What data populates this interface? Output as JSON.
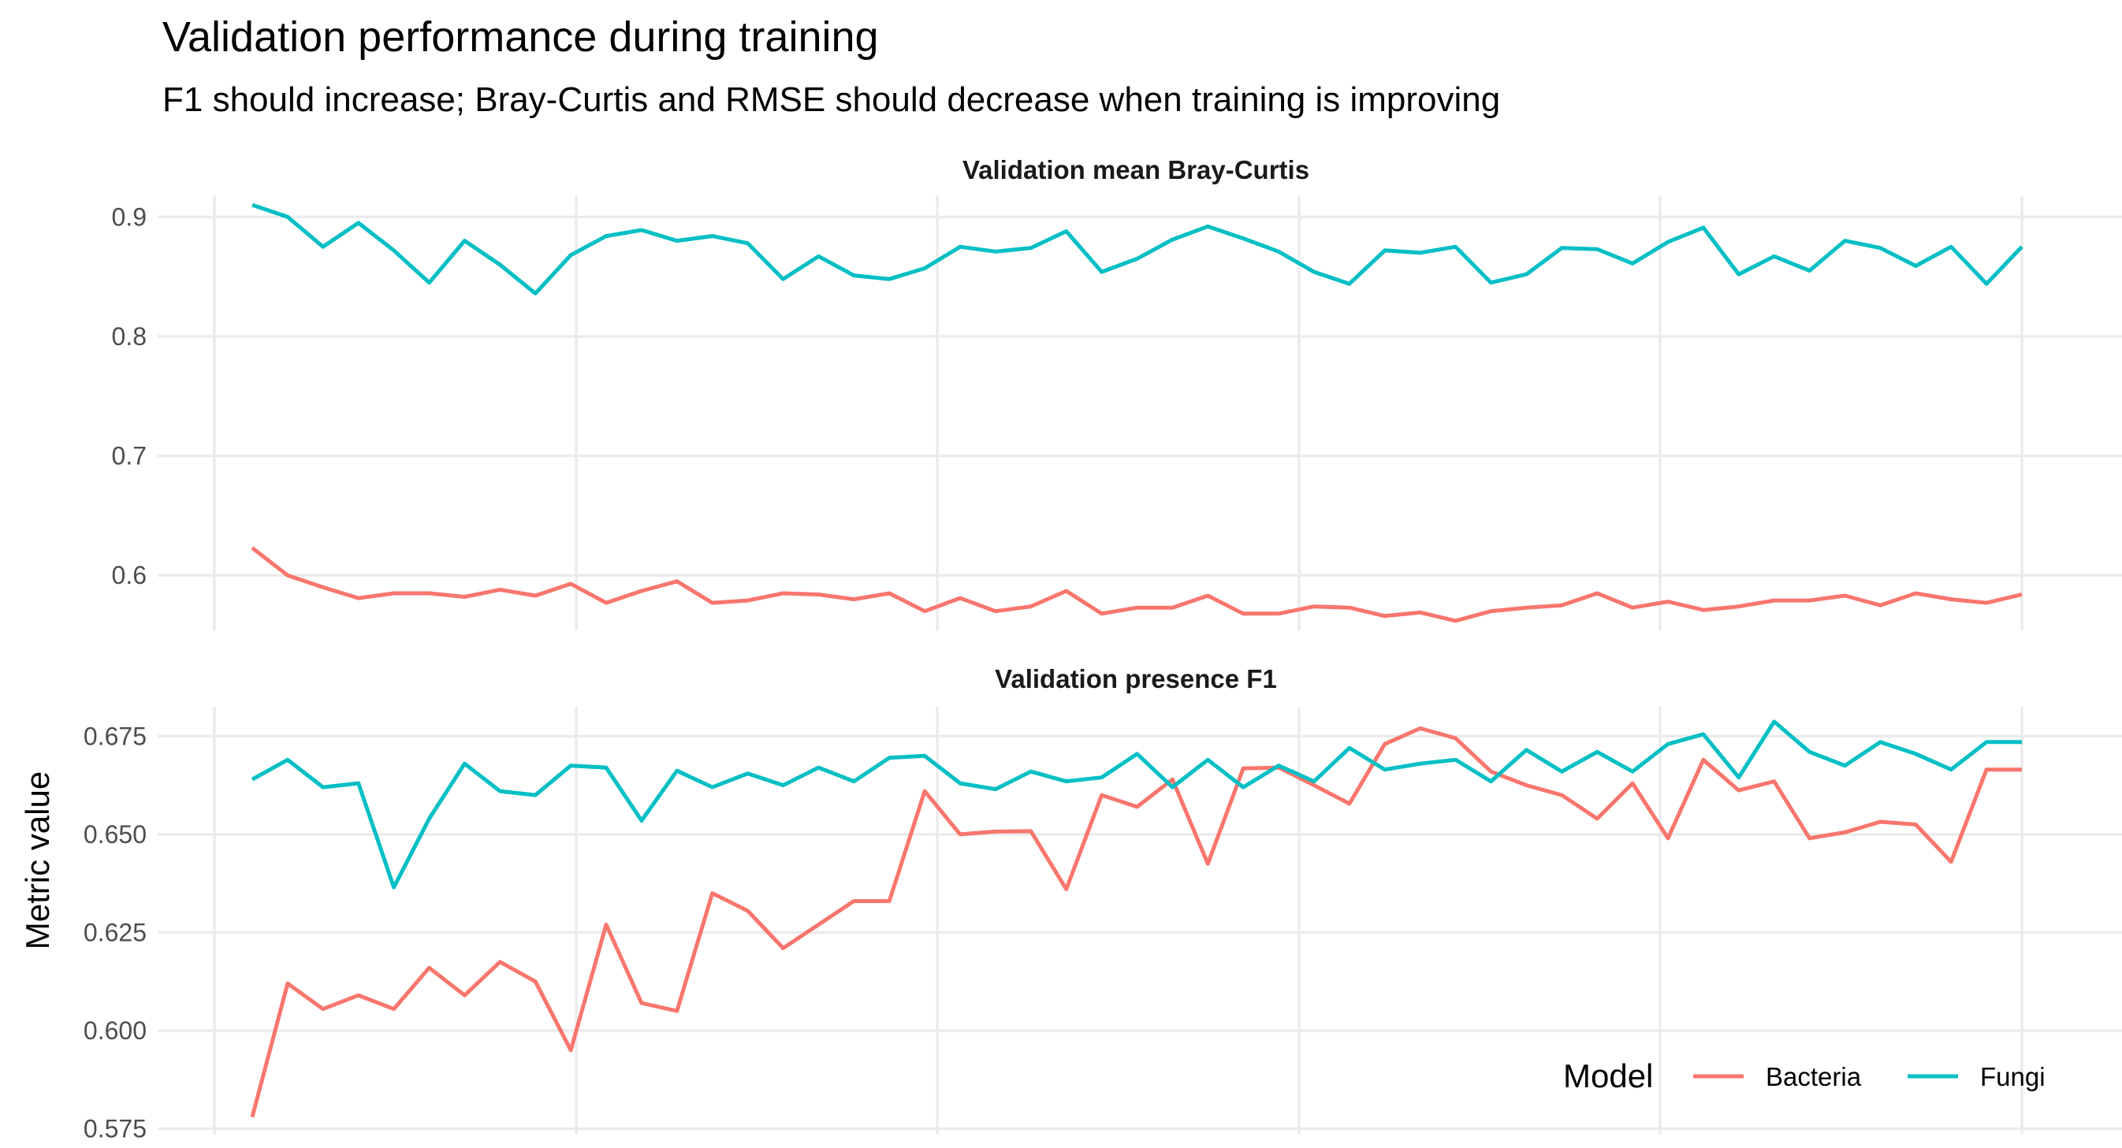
{
  "title": "Validation performance during training",
  "subtitle": "F1 should increase; Bray-Curtis and RMSE should decrease when training is improving",
  "ylabel": "Metric value",
  "legend": {
    "title": "Model",
    "position": "bottom-right, inside lower panel",
    "items": [
      {
        "label": "Bacteria",
        "color": "#F8766D"
      },
      {
        "label": "Fungi",
        "color": "#00BFC4"
      }
    ]
  },
  "chart_data": [
    {
      "type": "line",
      "title": "Validation mean Bray-Curtis",
      "ylim": [
        0.554,
        0.918
      ],
      "yticks": [
        0.6,
        0.7,
        0.8,
        0.9
      ],
      "ytick_labels": [
        "0.6",
        "0.7",
        "0.8",
        "0.9"
      ],
      "grid": true,
      "x": [
        1,
        2,
        3,
        4,
        5,
        6,
        7,
        8,
        9,
        10,
        11,
        12,
        13,
        14,
        15,
        16,
        17,
        18,
        19,
        20,
        21,
        22,
        23,
        24,
        25,
        26,
        27,
        28,
        29,
        30,
        31,
        32,
        33,
        34,
        35,
        36,
        37,
        38,
        39,
        40,
        41,
        42,
        43,
        44,
        45,
        46,
        47,
        48,
        49,
        50,
        51
      ],
      "series": [
        {
          "name": "Bacteria",
          "color": "#F8766D",
          "values": [
            0.623,
            0.6,
            0.59,
            0.581,
            0.585,
            0.585,
            0.582,
            0.588,
            0.583,
            0.593,
            0.577,
            0.587,
            0.595,
            0.577,
            0.579,
            0.585,
            0.584,
            0.58,
            0.585,
            0.57,
            0.581,
            0.57,
            0.574,
            0.587,
            0.568,
            0.573,
            0.573,
            0.583,
            0.568,
            0.568,
            0.574,
            0.573,
            0.566,
            0.569,
            0.562,
            0.57,
            0.573,
            0.575,
            0.585,
            0.573,
            0.578,
            0.571,
            0.574,
            0.579,
            0.579,
            0.583,
            0.575,
            0.585,
            0.58,
            0.577,
            0.584
          ]
        },
        {
          "name": "Fungi",
          "color": "#00BFC4",
          "values": [
            0.91,
            0.9,
            0.875,
            0.895,
            0.872,
            0.845,
            0.88,
            0.86,
            0.836,
            0.868,
            0.884,
            0.889,
            0.88,
            0.884,
            0.878,
            0.848,
            0.867,
            0.851,
            0.848,
            0.857,
            0.875,
            0.871,
            0.874,
            0.888,
            0.854,
            0.865,
            0.881,
            0.892,
            0.882,
            0.871,
            0.854,
            0.844,
            0.872,
            0.87,
            0.875,
            0.845,
            0.852,
            0.874,
            0.873,
            0.861,
            0.879,
            0.891,
            0.852,
            0.867,
            0.855,
            0.88,
            0.874,
            0.859,
            0.875,
            0.844,
            0.875
          ]
        }
      ]
    },
    {
      "type": "line",
      "title": "Validation presence F1",
      "ylim": [
        0.5735,
        0.6825
      ],
      "yticks": [
        0.575,
        0.6,
        0.625,
        0.65,
        0.675
      ],
      "ytick_labels": [
        "0.575",
        "0.600",
        "0.625",
        "0.650",
        "0.675"
      ],
      "grid": true,
      "x": [
        1,
        2,
        3,
        4,
        5,
        6,
        7,
        8,
        9,
        10,
        11,
        12,
        13,
        14,
        15,
        16,
        17,
        18,
        19,
        20,
        21,
        22,
        23,
        24,
        25,
        26,
        27,
        28,
        29,
        30,
        31,
        32,
        33,
        34,
        35,
        36,
        37,
        38,
        39,
        40,
        41,
        42,
        43,
        44,
        45,
        46,
        47,
        48,
        49,
        50,
        51
      ],
      "series": [
        {
          "name": "Bacteria",
          "color": "#F8766D",
          "values": [
            0.578,
            0.612,
            0.6055,
            0.609,
            0.6055,
            0.616,
            0.609,
            0.6175,
            0.6125,
            0.595,
            0.627,
            0.607,
            0.605,
            0.635,
            0.6305,
            0.621,
            0.627,
            0.633,
            0.633,
            0.661,
            0.65,
            0.6507,
            0.6508,
            0.636,
            0.66,
            0.657,
            0.664,
            0.6425,
            0.6668,
            0.667,
            0.6625,
            0.6578,
            0.673,
            0.677,
            0.6745,
            0.666,
            0.6625,
            0.66,
            0.654,
            0.663,
            0.649,
            0.669,
            0.6612,
            0.6635,
            0.649,
            0.6505,
            0.6532,
            0.6525,
            0.643,
            0.6665,
            0.6665
          ]
        },
        {
          "name": "Fungi",
          "color": "#00BFC4",
          "values": [
            0.664,
            0.669,
            0.662,
            0.663,
            0.6365,
            0.654,
            0.668,
            0.661,
            0.66,
            0.6675,
            0.667,
            0.6535,
            0.6662,
            0.662,
            0.6655,
            0.6625,
            0.667,
            0.6635,
            0.6695,
            0.67,
            0.663,
            0.6615,
            0.666,
            0.6635,
            0.6645,
            0.6705,
            0.662,
            0.669,
            0.662,
            0.6675,
            0.6635,
            0.672,
            0.6665,
            0.668,
            0.669,
            0.6635,
            0.6715,
            0.666,
            0.671,
            0.666,
            0.673,
            0.6755,
            0.6645,
            0.6787,
            0.671,
            0.6675,
            0.6735,
            0.6705,
            0.6665,
            0.6735,
            0.6735
          ]
        }
      ]
    }
  ]
}
